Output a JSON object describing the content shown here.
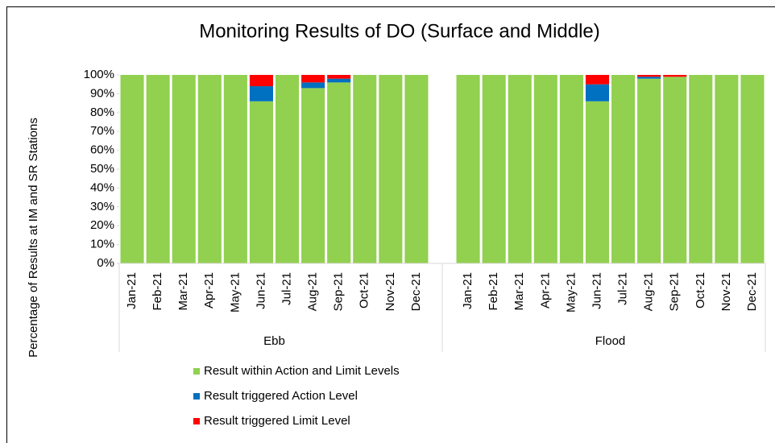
{
  "chart_data": {
    "type": "bar",
    "stacked": true,
    "title": "Monitoring Results of DO (Surface and Middle)",
    "y_label": "Percentage of Results at IM and SR Stations",
    "group_names": [
      "Ebb",
      "Flood"
    ],
    "categories": [
      "Jan-21",
      "Feb-21",
      "Mar-21",
      "Apr-21",
      "May-21",
      "Jun-21",
      "Jul-21",
      "Aug-21",
      "Sep-21",
      "Oct-21",
      "Nov-21",
      "Dec-21",
      "Jan-21",
      "Feb-21",
      "Mar-21",
      "Apr-21",
      "May-21",
      "Jun-21",
      "Jul-21",
      "Aug-21",
      "Sep-21",
      "Oct-21",
      "Nov-21",
      "Dec-21"
    ],
    "series": [
      {
        "name": "Result within Action and Limit Levels",
        "color": "#92d050",
        "values": [
          100,
          100,
          100,
          100,
          100,
          86,
          100,
          93,
          96,
          100,
          100,
          100,
          100,
          100,
          100,
          100,
          100,
          86,
          100,
          98,
          99,
          100,
          100,
          100
        ]
      },
      {
        "name": "Result triggered Action Level",
        "color": "#0070c0",
        "values": [
          0,
          0,
          0,
          0,
          0,
          8,
          0,
          3,
          2,
          0,
          0,
          0,
          0,
          0,
          0,
          0,
          0,
          9,
          0,
          1,
          0,
          0,
          0,
          0
        ]
      },
      {
        "name": "Result triggered Limit Level",
        "color": "#ff0000",
        "values": [
          0,
          0,
          0,
          0,
          0,
          6,
          0,
          4,
          2,
          0,
          0,
          0,
          0,
          0,
          0,
          0,
          0,
          5,
          0,
          1,
          1,
          0,
          0,
          0
        ]
      }
    ],
    "ylim": [
      0,
      100
    ],
    "yticks": [
      {
        "value": 0,
        "label": "0%"
      },
      {
        "value": 10,
        "label": "10%"
      },
      {
        "value": 20,
        "label": "20%"
      },
      {
        "value": 30,
        "label": "30%"
      },
      {
        "value": 40,
        "label": "40%"
      },
      {
        "value": 50,
        "label": "50%"
      },
      {
        "value": 60,
        "label": "60%"
      },
      {
        "value": 70,
        "label": "70%"
      },
      {
        "value": 80,
        "label": "80%"
      },
      {
        "value": 90,
        "label": "90%"
      },
      {
        "value": 100,
        "label": "100%"
      }
    ],
    "legend": "bottom-left"
  }
}
